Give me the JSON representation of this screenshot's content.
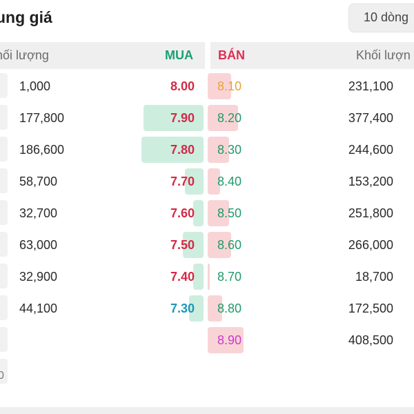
{
  "header": {
    "title": "ung giá",
    "rows_button": "10 dòng"
  },
  "columns": {
    "left_volume": "hối lượng",
    "buy": "MUA",
    "sell": "BÁN",
    "right_volume": "Khối lượn"
  },
  "orders": [
    {
      "buy_vol": "1,000",
      "buy_price": "8.00",
      "sell_price": "8.10",
      "sell_vol": "231,100",
      "buy_color": "#d42a46",
      "sell_color": "#e6a43a",
      "buy_fill": 0,
      "sell_fill": 0.13
    },
    {
      "buy_vol": "177,800",
      "buy_price": "7.90",
      "sell_price": "8.20",
      "sell_vol": "377,400",
      "buy_color": "#d42a46",
      "sell_color": "#1f9a6a",
      "buy_fill": 0.29,
      "sell_fill": 0.17
    },
    {
      "buy_vol": "186,600",
      "buy_price": "7.80",
      "sell_price": "8.30",
      "sell_vol": "244,600",
      "buy_color": "#d42a46",
      "sell_color": "#1f9a6a",
      "buy_fill": 0.3,
      "sell_fill": 0.12
    },
    {
      "buy_vol": "58,700",
      "buy_price": "7.70",
      "sell_price": "8.40",
      "sell_vol": "153,200",
      "buy_color": "#d42a46",
      "sell_color": "#1f9a6a",
      "buy_fill": 0.09,
      "sell_fill": 0.07
    },
    {
      "buy_vol": "32,700",
      "buy_price": "7.60",
      "sell_price": "8.50",
      "sell_vol": "251,800",
      "buy_color": "#d42a46",
      "sell_color": "#1f9a6a",
      "buy_fill": 0.05,
      "sell_fill": 0.12
    },
    {
      "buy_vol": "63,000",
      "buy_price": "7.50",
      "sell_price": "8.60",
      "sell_vol": "266,000",
      "buy_color": "#d42a46",
      "sell_color": "#1f9a6a",
      "buy_fill": 0.1,
      "sell_fill": 0.13
    },
    {
      "buy_vol": "32,900",
      "buy_price": "7.40",
      "sell_price": "8.70",
      "sell_vol": "18,700",
      "buy_color": "#d42a46",
      "sell_color": "#1f9a6a",
      "buy_fill": 0.05,
      "sell_fill": 0.01
    },
    {
      "buy_vol": "44,100",
      "buy_price": "7.30",
      "sell_price": "8.80",
      "sell_vol": "172,500",
      "buy_color": "#1a98b8",
      "sell_color": "#1f9a6a",
      "buy_fill": 0.07,
      "sell_fill": 0.08
    },
    {
      "buy_vol": "",
      "buy_price": "",
      "sell_price": "8.90",
      "sell_vol": "408,500",
      "buy_color": "#d42a46",
      "sell_color": "#c93bc9",
      "buy_fill": 0,
      "sell_fill": 0.2
    }
  ],
  "footer_partial": "0"
}
